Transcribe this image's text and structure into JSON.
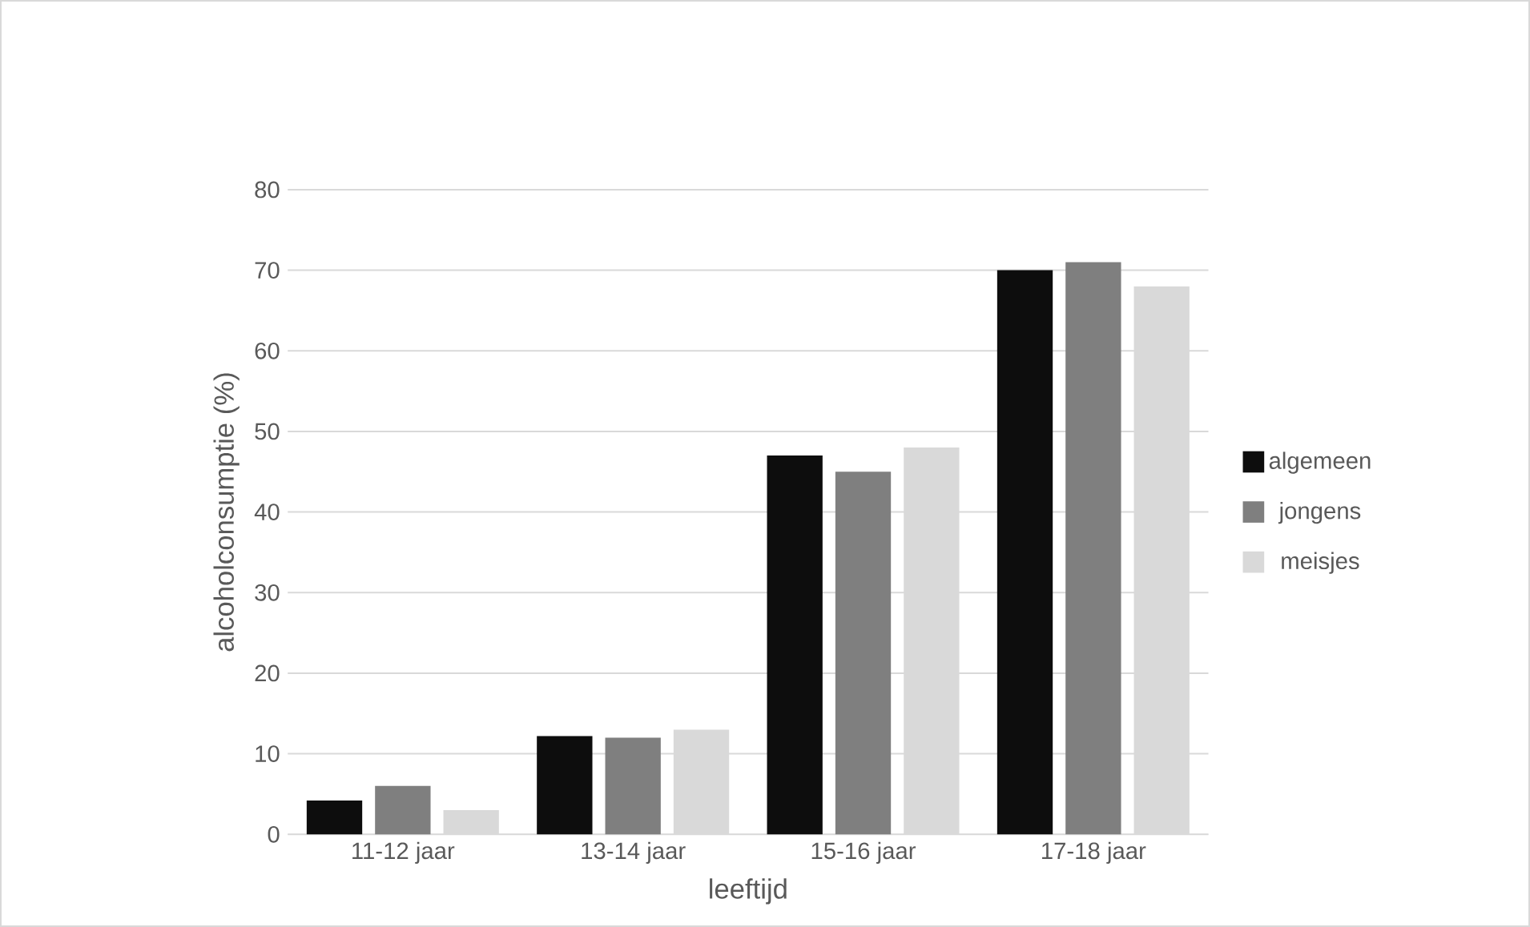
{
  "chart_data": {
    "type": "bar",
    "xlabel": "leeftijd",
    "ylabel": "alcoholconsumptie (%)",
    "categories": [
      "11-12 jaar",
      "13-14 jaar",
      "15-16 jaar",
      "17-18 jaar"
    ],
    "series": [
      {
        "name": "algemeen",
        "color": "#0d0d0d",
        "values": [
          4.2,
          12.2,
          47,
          70
        ]
      },
      {
        "name": "jongens",
        "color": "#7f7f7f",
        "values": [
          6,
          12,
          45,
          71
        ]
      },
      {
        "name": "meisjes",
        "color": "#d9d9d9",
        "values": [
          3,
          13,
          48,
          68
        ]
      }
    ],
    "ylim": [
      0,
      80
    ],
    "yticks": [
      0,
      10,
      20,
      30,
      40,
      50,
      60,
      70,
      80
    ],
    "grid": "y",
    "legend": "right"
  }
}
